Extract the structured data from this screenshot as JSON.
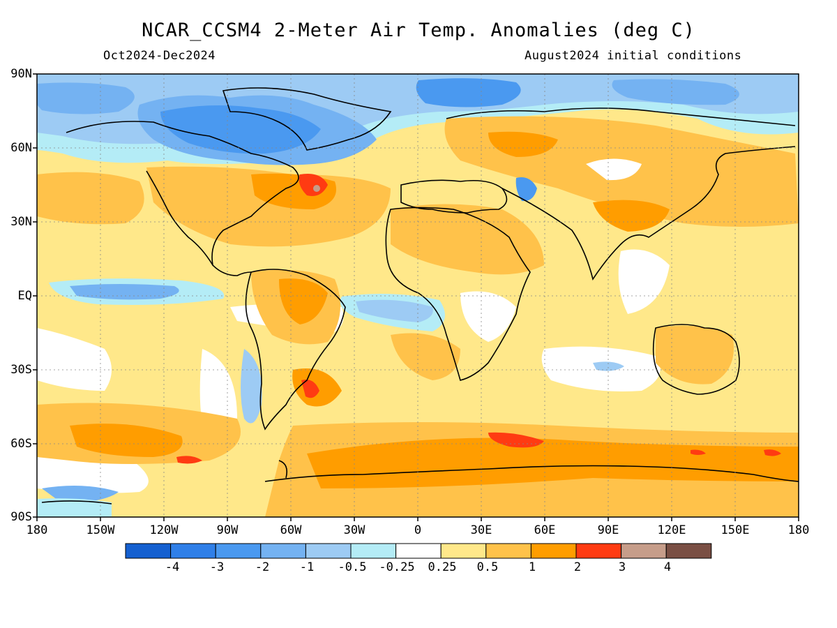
{
  "title": "NCAR_CCSM4 2-Meter Air Temp. Anomalies (deg C)",
  "period": "Oct2024-Dec2024",
  "initial_conditions": "August2024 initial conditions",
  "lat_labels": [
    "90N",
    "60N",
    "30N",
    "EQ",
    "30S",
    "60S",
    "90S"
  ],
  "lon_labels": [
    "180",
    "150W",
    "120W",
    "90W",
    "60W",
    "30W",
    "0",
    "30E",
    "60E",
    "90E",
    "120E",
    "150E",
    "180"
  ],
  "colorbar": {
    "colors": [
      "#1560d0",
      "#2f7fe8",
      "#4a99f0",
      "#74b2f2",
      "#9dcbf4",
      "#b4ecf6",
      "#ffffff",
      "#ffe88a",
      "#ffc24a",
      "#ff9d00",
      "#ff3b12",
      "#c69d8a",
      "#7a4f44"
    ],
    "labels": [
      "-4",
      "-3",
      "-2",
      "-1",
      "-0.5",
      "-0.25",
      "0.25",
      "0.5",
      "1",
      "2",
      "3",
      "4"
    ]
  }
}
